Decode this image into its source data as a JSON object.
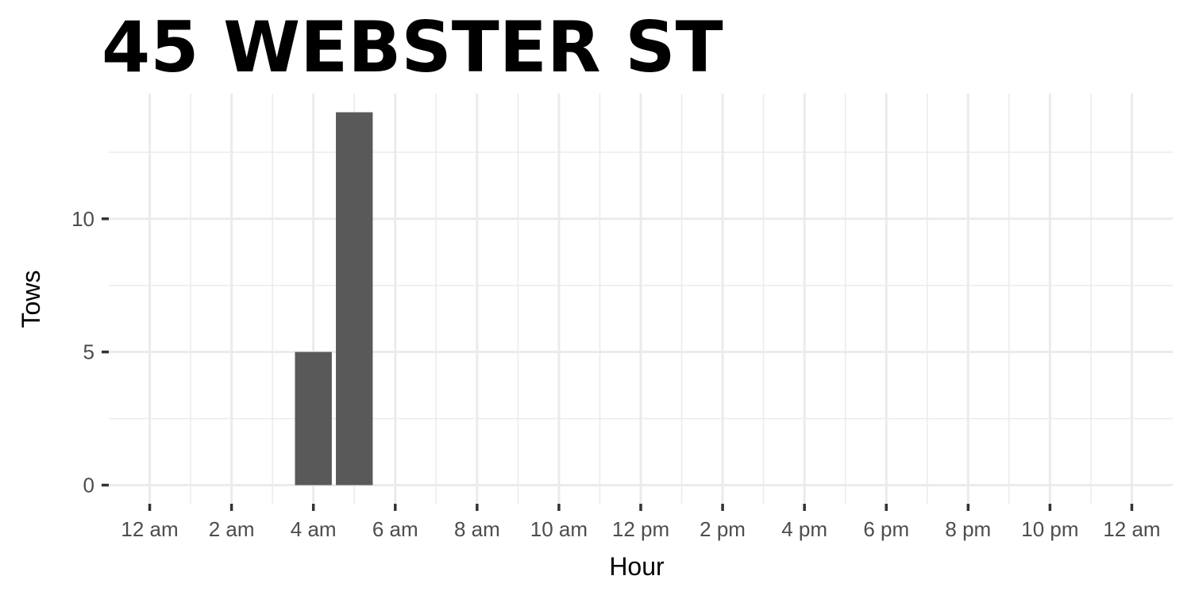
{
  "chart_data": {
    "type": "bar",
    "title": "45 WEBSTER ST",
    "xlabel": "Hour",
    "ylabel": "Tows",
    "x_tick_hours": [
      0,
      2,
      4,
      6,
      8,
      10,
      12,
      14,
      16,
      18,
      20,
      22,
      24
    ],
    "x_tick_labels": [
      "12 am",
      "2 am",
      "4 am",
      "6 am",
      "8 am",
      "10 am",
      "12 pm",
      "2 pm",
      "4 pm",
      "6 pm",
      "8 pm",
      "10 pm",
      "12 am"
    ],
    "xlim": [
      -1,
      25
    ],
    "y_ticks": [
      0,
      5,
      10
    ],
    "y_tick_labels": [
      "0",
      "5",
      "10"
    ],
    "ylim": [
      -0.7,
      14.7
    ],
    "grid": true,
    "bar_color": "#595959",
    "grid_color": "#ebebeb",
    "bars": [
      {
        "hour": 4,
        "value": 5
      },
      {
        "hour": 5,
        "value": 14
      }
    ]
  }
}
